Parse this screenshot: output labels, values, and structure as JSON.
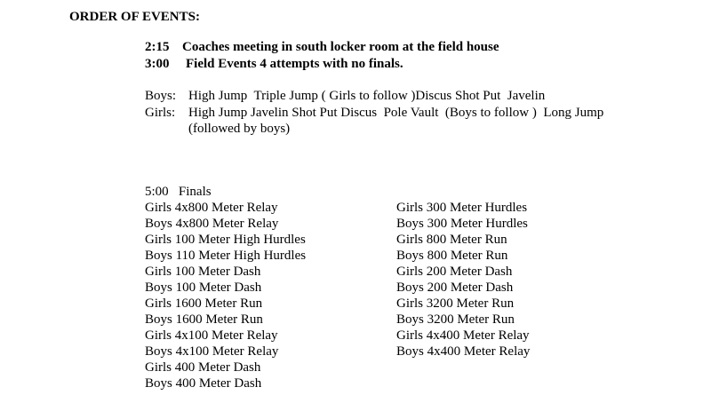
{
  "title": "ORDER OF EVENTS:",
  "schedule": [
    {
      "time": "2:15",
      "text": "Coaches meeting in south locker room at the field house"
    },
    {
      "time": "3:00",
      "text": "Field Events 4 attempts with no finals."
    }
  ],
  "field": {
    "boys_label": "Boys:",
    "boys": "High Jump  Triple Jump ( Girls to follow )Discus Shot Put  Javelin",
    "girls_label": "Girls:",
    "girls": "High Jump Javelin Shot Put Discus  Pole Vault  (Boys to follow )  Long Jump",
    "girls_cont": "(followed by boys)"
  },
  "finals": {
    "heading": "5:00   Finals",
    "left": [
      "Girls 4x800 Meter Relay",
      "Boys 4x800 Meter Relay",
      "Girls 100 Meter High Hurdles",
      "Boys 110 Meter High Hurdles",
      "Girls 100 Meter Dash",
      "Boys 100 Meter Dash",
      "Girls 1600 Meter Run",
      "Boys 1600 Meter Run",
      "Girls 4x100 Meter Relay",
      "Boys 4x100 Meter Relay",
      "Girls 400 Meter Dash",
      "Boys 400 Meter Dash"
    ],
    "right": [
      "Girls 300 Meter Hurdles",
      "Boys 300 Meter Hurdles",
      "Girls 800 Meter Run",
      "Boys 800 Meter Run",
      "Girls 200 Meter Dash",
      "Boys 200 Meter Dash",
      "Girls 3200 Meter Run",
      "Boys 3200 Meter Run",
      "Girls 4x400 Meter Relay",
      "Boys 4x400 Meter Relay"
    ]
  }
}
